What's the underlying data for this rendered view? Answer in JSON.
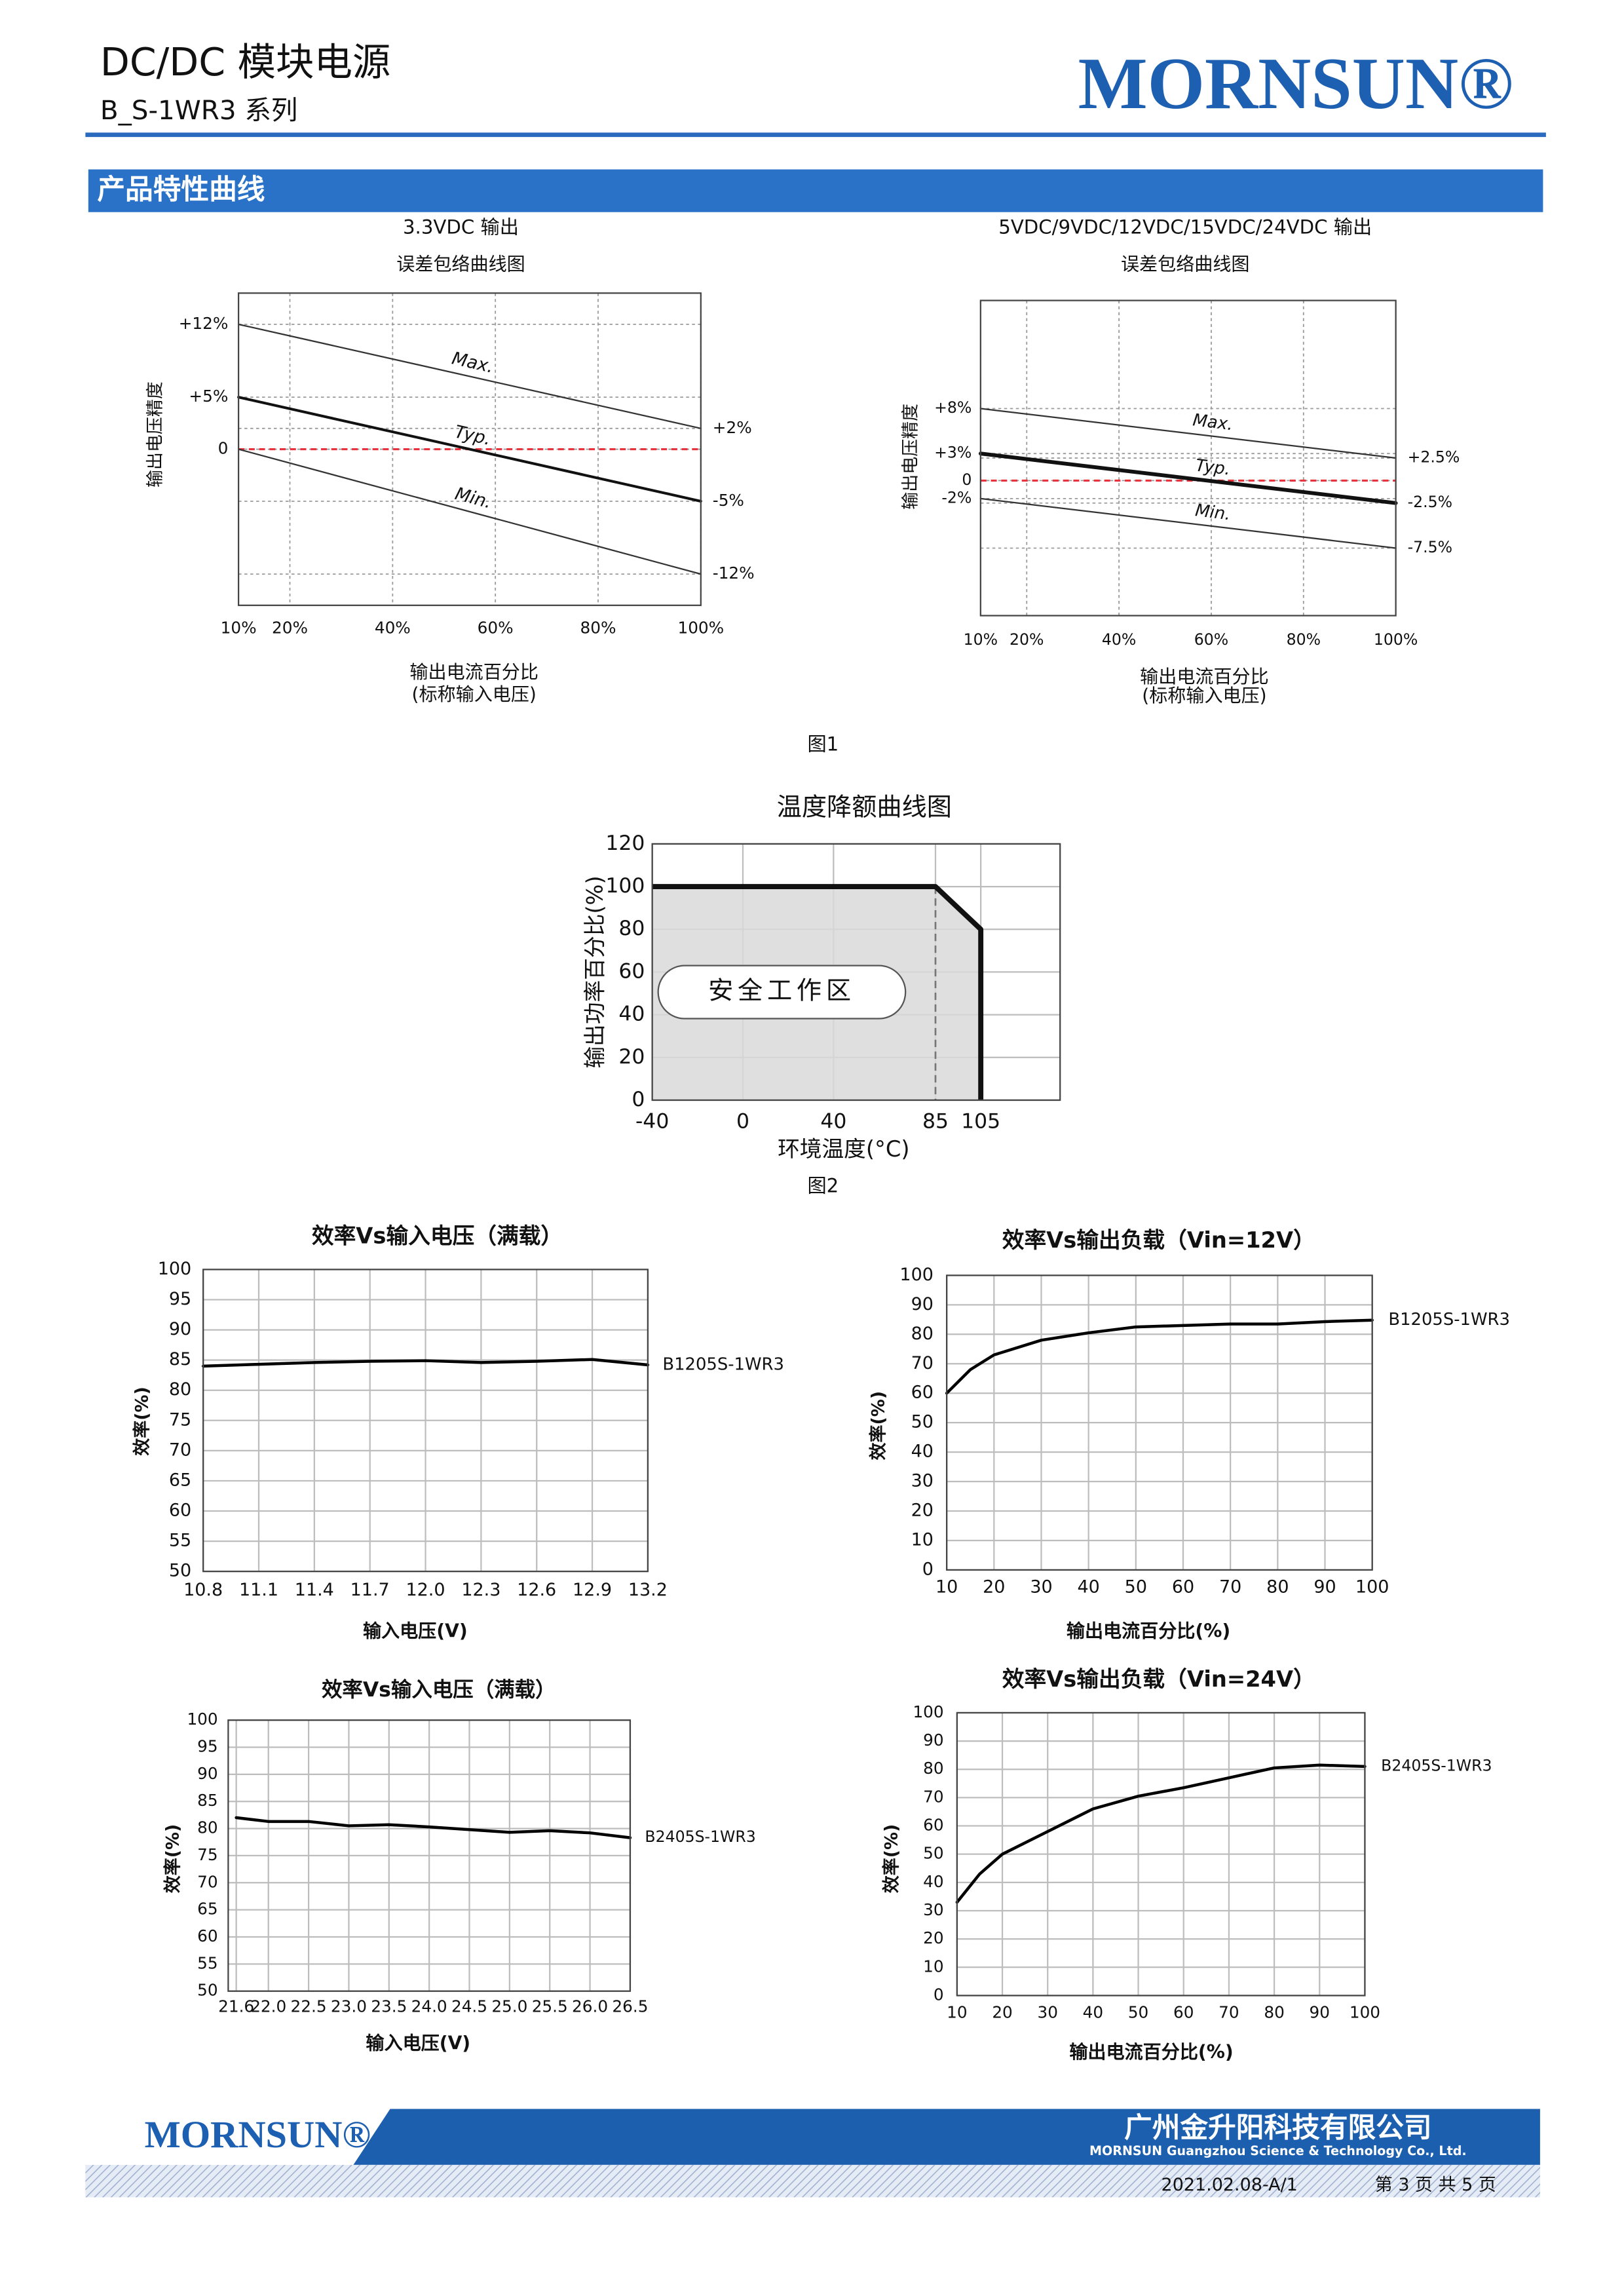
{
  "header": {
    "title": "DC/DC 模块电源",
    "series": "B_S-1WR3 系列",
    "logo": "MORNSUN®"
  },
  "section": {
    "title": "产品特性曲线"
  },
  "captions": [
    "图1",
    "图2"
  ],
  "chart_data": [
    {
      "type": "line",
      "title": "3.3VDC 输出",
      "subtitle": "误差包络曲线图",
      "ylabel": "输出电压精度",
      "xlabel": "输出电流百分比",
      "xlabel_note": "(标称输入电压)",
      "x": [
        10,
        100
      ],
      "xlim": [
        10,
        100
      ],
      "xticks": [
        {
          "value": 10,
          "label": "10%"
        },
        {
          "value": 20,
          "label": "20%"
        },
        {
          "value": 40,
          "label": "40%"
        },
        {
          "value": 60,
          "label": "60%"
        },
        {
          "value": 80,
          "label": "80%"
        },
        {
          "value": 100,
          "label": "100%"
        }
      ],
      "ylim": [
        -15,
        15
      ],
      "yticks": [
        {
          "value": 12,
          "label": "+12%"
        },
        {
          "value": 5,
          "label": "+5%"
        },
        0
      ],
      "y2lim": [
        -15,
        15
      ],
      "y2ticks": [
        {
          "value": 2,
          "label": "+2%"
        },
        {
          "value": -5,
          "label": "-5%"
        },
        {
          "value": -12,
          "label": "-12%"
        }
      ],
      "ref_line": {
        "value": 0,
        "color": "#e8323c"
      },
      "grid": true,
      "series": [
        {
          "name": "Max.",
          "color": "#333333",
          "values": [
            12,
            2
          ]
        },
        {
          "name": "Typ.",
          "color": "#111111",
          "values": [
            5,
            -5
          ]
        },
        {
          "name": "Min.",
          "color": "#333333",
          "values": [
            0,
            -12
          ]
        }
      ]
    },
    {
      "type": "line",
      "title": "5VDC/9VDC/12VDC/15VDC/24VDC 输出",
      "subtitle": "误差包络曲线图",
      "ylabel": "输出电压精度",
      "xlabel": "输出电流百分比",
      "xlabel_note": "(标称输入电压)",
      "x": [
        10,
        100
      ],
      "xlim": [
        10,
        100
      ],
      "xticks": [
        {
          "value": 10,
          "label": "10%"
        },
        {
          "value": 20,
          "label": "20%"
        },
        {
          "value": 40,
          "label": "40%"
        },
        {
          "value": 60,
          "label": "60%"
        },
        {
          "value": 80,
          "label": "80%"
        },
        {
          "value": 100,
          "label": "100%"
        }
      ],
      "ylim": [
        -15,
        20
      ],
      "yticks": [
        {
          "value": 8,
          "label": "+8%"
        },
        {
          "value": 3,
          "label": "+3%"
        },
        0,
        {
          "value": -2,
          "label": "-2%"
        }
      ],
      "y2lim": [
        -15,
        20
      ],
      "y2ticks": [
        {
          "value": 2.5,
          "label": "+2.5%"
        },
        {
          "value": -2.5,
          "label": "-2.5%"
        },
        {
          "value": -7.5,
          "label": "-7.5%"
        }
      ],
      "ref_line": {
        "value": 0,
        "color": "#e8323c"
      },
      "grid": true,
      "series": [
        {
          "name": "Max.",
          "color": "#333333",
          "values": [
            8,
            2.5
          ]
        },
        {
          "name": "Typ.",
          "color": "#111111",
          "values": [
            3,
            -2.5
          ]
        },
        {
          "name": "Min.",
          "color": "#333333",
          "values": [
            -2,
            -7.5
          ]
        }
      ]
    },
    {
      "type": "area",
      "title": "温度降额曲线图",
      "ylabel": "输出功率百分比(%)",
      "xlabel": "环境温度(°C)",
      "annotation": "安全工作区",
      "x": [
        -40,
        85,
        105,
        105
      ],
      "values": [
        100,
        100,
        80,
        0
      ],
      "color": "#111111",
      "fill_color": "#d9d9d9",
      "ref_line_x": 85,
      "xlim": [
        -40,
        140
      ],
      "xticks": [
        -40,
        0,
        40,
        85,
        105
      ],
      "ylim": [
        0,
        120
      ],
      "yticks": [
        0,
        20,
        40,
        60,
        80,
        100,
        120
      ],
      "grid": true
    },
    {
      "type": "line",
      "title": "效率Vs输入电压（满载）",
      "ylabel": "效率(%)",
      "xlabel": "输入电压(V)",
      "x": [
        10.8,
        11.1,
        11.4,
        11.7,
        12.0,
        12.3,
        12.6,
        12.9,
        13.2
      ],
      "xlim": [
        10.8,
        13.2
      ],
      "xticks": [
        10.8,
        11.1,
        11.4,
        11.7,
        {
          "value": 12,
          "label": "12.0"
        },
        12.3,
        12.6,
        12.9,
        13.2
      ],
      "ylim": [
        50,
        100
      ],
      "yticks": [
        50,
        55,
        60,
        65,
        70,
        75,
        80,
        85,
        90,
        95,
        100
      ],
      "grid": true,
      "series": [
        {
          "name": "B1205S-1WR3",
          "color": "#000000",
          "values": [
            84,
            84.3,
            84.6,
            84.8,
            84.9,
            84.6,
            84.8,
            85.1,
            84.2
          ]
        }
      ]
    },
    {
      "type": "line",
      "title": "效率Vs输出负载（Vin=12V）",
      "ylabel": "效率(%)",
      "xlabel": "输出电流百分比(%)",
      "x": [
        10,
        15,
        20,
        30,
        40,
        50,
        60,
        70,
        80,
        90,
        100
      ],
      "xlim": [
        10,
        100
      ],
      "xticks": [
        10,
        20,
        30,
        40,
        50,
        60,
        70,
        80,
        90,
        100
      ],
      "ylim": [
        0,
        100
      ],
      "yticks": [
        0,
        10,
        20,
        30,
        40,
        50,
        60,
        70,
        80,
        90,
        100
      ],
      "grid": true,
      "series": [
        {
          "name": "B1205S-1WR3",
          "color": "#000000",
          "values": [
            60,
            68,
            73,
            78,
            80.5,
            82.5,
            83,
            83.5,
            83.5,
            84.3,
            84.8
          ]
        }
      ]
    },
    {
      "type": "line",
      "title": "效率Vs输入电压（满载）",
      "ylabel": "效率(%)",
      "xlabel": "输入电压(V)",
      "x": [
        21.6,
        22,
        22.5,
        23,
        23.5,
        24,
        24.5,
        25,
        25.5,
        26,
        26.5
      ],
      "xlim": [
        21.5,
        26.5
      ],
      "xticks": [
        21.6,
        {
          "value": 22,
          "label": "22.0"
        },
        22.5,
        {
          "value": 23,
          "label": "23.0"
        },
        23.5,
        {
          "value": 24,
          "label": "24.0"
        },
        24.5,
        {
          "value": 25,
          "label": "25.0"
        },
        25.5,
        {
          "value": 26,
          "label": "26.0"
        },
        26.5
      ],
      "ylim": [
        50,
        100
      ],
      "yticks": [
        50,
        55,
        60,
        65,
        70,
        75,
        80,
        85,
        90,
        95,
        100
      ],
      "grid": true,
      "series": [
        {
          "name": "B2405S-1WR3",
          "color": "#000000",
          "values": [
            82,
            81.3,
            81.3,
            80.5,
            80.7,
            80.3,
            79.8,
            79.3,
            79.6,
            79.2,
            78.3
          ]
        }
      ]
    },
    {
      "type": "line",
      "title": "效率Vs输出负载（Vin=24V）",
      "ylabel": "效率(%)",
      "xlabel": "输出电流百分比(%)",
      "x": [
        10,
        15,
        20,
        30,
        40,
        50,
        60,
        70,
        80,
        90,
        100
      ],
      "xlim": [
        10,
        100
      ],
      "xticks": [
        10,
        20,
        30,
        40,
        50,
        60,
        70,
        80,
        90,
        100
      ],
      "ylim": [
        0,
        100
      ],
      "yticks": [
        0,
        10,
        20,
        30,
        40,
        50,
        60,
        70,
        80,
        90,
        100
      ],
      "grid": true,
      "series": [
        {
          "name": "B2405S-1WR3",
          "color": "#000000",
          "values": [
            33,
            43,
            50,
            58,
            66,
            70.5,
            73.5,
            77,
            80.5,
            81.5,
            81
          ]
        }
      ]
    }
  ],
  "footer": {
    "logo": "MORNSUN®",
    "company": "广州金升阳科技有限公司",
    "company_en": "MORNSUN Guangzhou Science & Technology Co., Ltd.",
    "version": "2021.02.08-A/1",
    "page": "第 3 页 共 5 页"
  }
}
